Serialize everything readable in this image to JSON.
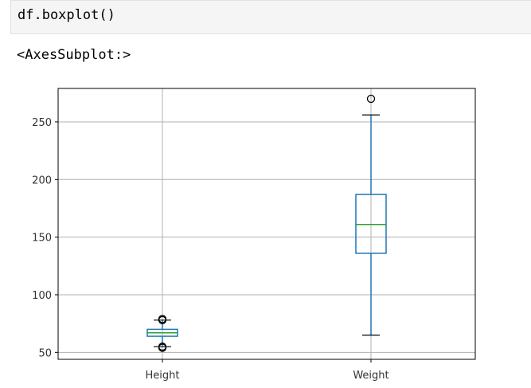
{
  "cell": {
    "code": "df.boxplot()",
    "output_repr": "<AxesSubplot:>"
  },
  "colors": {
    "box": "#1f77b4",
    "median": "#2ca02c",
    "grid": "#b0b0b0",
    "axes": "#000000"
  },
  "chart_data": {
    "type": "boxplot",
    "title": "",
    "xlabel": "",
    "ylabel": "",
    "categories": [
      "Height",
      "Weight"
    ],
    "ylim": [
      44,
      279
    ],
    "yticks": [
      50,
      100,
      150,
      200,
      250
    ],
    "grid": true,
    "boxes": [
      {
        "name": "Height",
        "whislo": 55,
        "q1": 64,
        "median": 67,
        "q3": 70,
        "whishi": 78,
        "fliers": [
          54,
          55,
          78,
          79
        ]
      },
      {
        "name": "Weight",
        "whislo": 65,
        "q1": 136,
        "median": 161,
        "q3": 187,
        "whishi": 256,
        "fliers": [
          270
        ]
      }
    ]
  }
}
